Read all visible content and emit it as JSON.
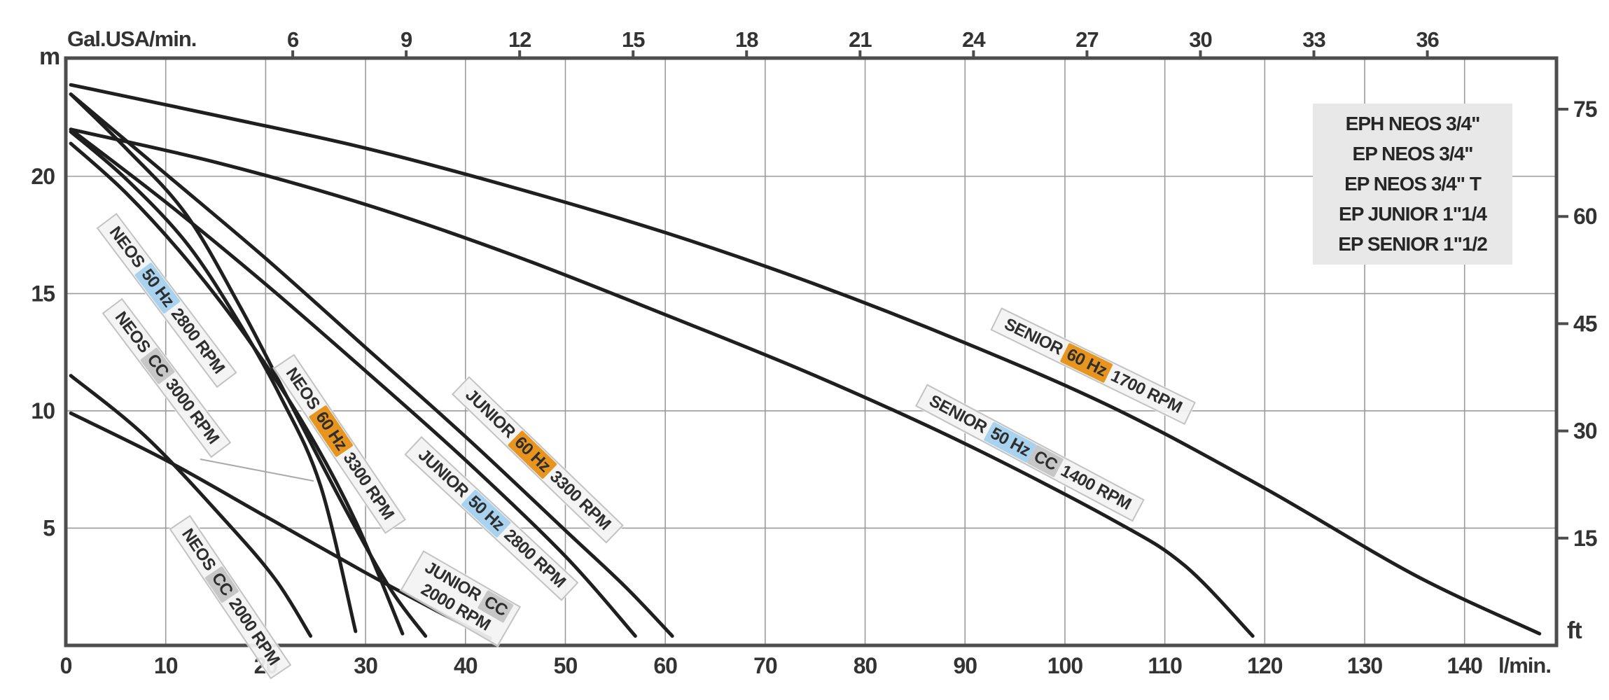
{
  "axes": {
    "top": {
      "label": "Gal.USA/min.",
      "ticks": [
        6,
        9,
        12,
        15,
        18,
        21,
        24,
        27,
        30,
        33,
        36
      ]
    },
    "bottom": {
      "label": "l/min.",
      "ticks": [
        0,
        10,
        20,
        30,
        40,
        50,
        60,
        70,
        80,
        90,
        100,
        110,
        120,
        130,
        140
      ]
    },
    "left": {
      "label": "m",
      "ticks": [
        5,
        10,
        15,
        20
      ]
    },
    "right": {
      "label": "ft",
      "ticks": [
        15,
        30,
        45,
        60,
        75
      ]
    }
  },
  "legend": {
    "lines": [
      "EPH NEOS 3/4\"",
      "EP NEOS 3/4\"",
      "EP NEOS 3/4\" T",
      "EP JUNIOR 1\"1/4",
      "EP SENIOR 1\"1/2"
    ]
  },
  "colors": {
    "curve": "#1f1f1f",
    "grid": "#9b9b9b",
    "frame": "#4d4d4d",
    "tick_text": "#333333",
    "leader": "#aaaaaa",
    "hz50_bg": "#a9d2ee",
    "hz60_bg": "#e8951f",
    "cc_bg": "#c7c7c7",
    "chip_bg": "#f3f3f3",
    "legend_bg": "#e8e8e8"
  },
  "chart_data": {
    "type": "line",
    "title": "",
    "xlabel": "l/min.",
    "xlabel_top": "Gal.USA/min.",
    "ylabel_left": "m",
    "ylabel_right": "ft",
    "xlim": [
      0,
      149.2
    ],
    "ylim": [
      0,
      25.04
    ],
    "x_top_unit_factor": 3.78541,
    "grid": {
      "x_step": 10,
      "y_step": 5,
      "on": true
    },
    "series": [
      {
        "id": "senior-60hz-1700",
        "label": "SENIOR 60 Hz 1700 RPM",
        "points": [
          [
            0.5,
            23.9
          ],
          [
            15,
            22.6
          ],
          [
            30,
            21.2
          ],
          [
            45,
            19.5
          ],
          [
            60,
            17.6
          ],
          [
            75,
            15.4
          ],
          [
            90,
            12.9
          ],
          [
            105,
            10.1
          ],
          [
            120,
            6.7
          ],
          [
            135,
            3.0
          ],
          [
            147.5,
            0.5
          ]
        ]
      },
      {
        "id": "senior-50hz-cc-1400",
        "label": "SENIOR 50 Hz CC 1400 RPM",
        "points": [
          [
            0.5,
            22.0
          ],
          [
            15,
            20.6
          ],
          [
            30,
            18.8
          ],
          [
            45,
            16.6
          ],
          [
            60,
            14.1
          ],
          [
            75,
            11.5
          ],
          [
            90,
            8.6
          ],
          [
            105,
            5.3
          ],
          [
            112,
            3.4
          ],
          [
            118.8,
            0.4
          ]
        ]
      },
      {
        "id": "junior-60hz-3300",
        "label": "JUNIOR 60 Hz 3300 RPM",
        "points": [
          [
            0.5,
            23.5
          ],
          [
            10,
            20.1
          ],
          [
            20,
            16.5
          ],
          [
            30,
            12.7
          ],
          [
            40,
            8.9
          ],
          [
            50,
            4.9
          ],
          [
            56,
            2.5
          ],
          [
            60.7,
            0.4
          ]
        ]
      },
      {
        "id": "junior-50hz-2800",
        "label": "JUNIOR 50 Hz 2800 RPM",
        "points": [
          [
            0.5,
            22.0
          ],
          [
            10,
            18.9
          ],
          [
            20,
            15.4
          ],
          [
            30,
            11.7
          ],
          [
            40,
            7.9
          ],
          [
            50,
            3.8
          ],
          [
            57,
            0.4
          ]
        ]
      },
      {
        "id": "junior-cc-2000",
        "label": "JUNIOR CC 2000 RPM",
        "points": [
          [
            0.5,
            9.9
          ],
          [
            10,
            7.9
          ],
          [
            20,
            5.5
          ],
          [
            30,
            3.1
          ],
          [
            37,
            1.5
          ],
          [
            42.5,
            0.3
          ]
        ]
      },
      {
        "id": "neos-60hz-3300",
        "label": "NEOS 60 Hz 3300 RPM",
        "points": [
          [
            0.5,
            23.5
          ],
          [
            6,
            21.2
          ],
          [
            12,
            18.4
          ],
          [
            17.5,
            14.4
          ],
          [
            22.5,
            10.3
          ],
          [
            28,
            5.8
          ],
          [
            32.5,
            2.4
          ],
          [
            36,
            0.4
          ]
        ]
      },
      {
        "id": "neos-50hz-2800",
        "label": "NEOS 50 Hz 2800 RPM",
        "points": [
          [
            0.5,
            21.9
          ],
          [
            6,
            19.9
          ],
          [
            12,
            17.2
          ],
          [
            17,
            14.0
          ],
          [
            21.5,
            10.6
          ],
          [
            25.5,
            6.8
          ],
          [
            29,
            0.6
          ]
        ]
      },
      {
        "id": "neos-cc-3000",
        "label": "NEOS CC 3000 RPM",
        "points": [
          [
            0.5,
            21.4
          ],
          [
            6,
            19.3
          ],
          [
            12,
            16.5
          ],
          [
            18,
            13.2
          ],
          [
            24,
            9.3
          ],
          [
            29,
            5.3
          ],
          [
            33.7,
            0.5
          ]
        ]
      },
      {
        "id": "neos-cc-2000",
        "label": "NEOS CC 2000 RPM",
        "points": [
          [
            0.5,
            11.5
          ],
          [
            8,
            8.9
          ],
          [
            16,
            5.3
          ],
          [
            21,
            2.8
          ],
          [
            24.5,
            0.4
          ]
        ]
      }
    ],
    "curve_labels": [
      {
        "series": "neos-50hz-2800",
        "x": 10.1,
        "y": 14.7,
        "rot": 53,
        "lines": [
          [
            {
              "t": "NEOS"
            },
            {
              "t": "50 Hz",
              "hl": "hz50"
            },
            {
              "t": "2800 RPM"
            }
          ]
        ]
      },
      {
        "series": "neos-cc-3000",
        "x": 10.1,
        "y": 11.4,
        "rot": 53,
        "lines": [
          [
            {
              "t": "NEOS"
            },
            {
              "t": "CC",
              "hl": "cc"
            },
            {
              "t": "3000 RPM"
            }
          ]
        ]
      },
      {
        "series": "neos-60hz-3300",
        "x": 27.4,
        "y": 8.6,
        "rot": 56,
        "lines": [
          [
            {
              "t": "NEOS"
            },
            {
              "t": "60 Hz",
              "hl": "hz60"
            },
            {
              "t": "3300 RPM"
            }
          ]
        ]
      },
      {
        "series": "junior-60hz-3300",
        "x": 47.2,
        "y": 7.9,
        "rot": 44,
        "lines": [
          [
            {
              "t": "JUNIOR"
            },
            {
              "t": "60 Hz",
              "hl": "hz60"
            },
            {
              "t": "3300 RPM"
            }
          ]
        ]
      },
      {
        "series": "junior-50hz-2800",
        "x": 42.6,
        "y": 5.4,
        "rot": 43,
        "lines": [
          [
            {
              "t": "JUNIOR"
            },
            {
              "t": "50 Hz",
              "hl": "hz50"
            },
            {
              "t": "2800 RPM"
            }
          ]
        ]
      },
      {
        "series": "junior-cc-2000",
        "x": 39.5,
        "y": 2.0,
        "rot": 30,
        "lines": [
          [
            {
              "t": "JUNIOR"
            },
            {
              "t": "CC",
              "hl": "cc"
            }
          ],
          [
            {
              "t": "2000 RPM"
            }
          ]
        ]
      },
      {
        "series": "neos-cc-2000",
        "x": 16.5,
        "y": 2.05,
        "rot": 56,
        "lines": [
          [
            {
              "t": "NEOS"
            },
            {
              "t": "CC",
              "hl": "cc"
            },
            {
              "t": "2000 RPM"
            }
          ]
        ]
      },
      {
        "series": "senior-60hz-1700",
        "x": 102.8,
        "y": 11.9,
        "rot": 26,
        "lines": [
          [
            {
              "t": "SENIOR"
            },
            {
              "t": "60 Hz",
              "hl": "hz60"
            },
            {
              "t": "1700 RPM"
            }
          ]
        ]
      },
      {
        "series": "senior-50hz-cc-1400",
        "x": 96.5,
        "y": 8.2,
        "rot": 28,
        "lines": [
          [
            {
              "t": "SENIOR"
            },
            {
              "t": "50 Hz",
              "hl": "hz50"
            },
            {
              "t": "CC",
              "hl": "cc"
            },
            {
              "t": "1400 RPM"
            }
          ]
        ]
      }
    ],
    "leader_line": {
      "from": [
        13.45,
        7.94
      ],
      "to": [
        24.81,
        7.01
      ]
    }
  }
}
